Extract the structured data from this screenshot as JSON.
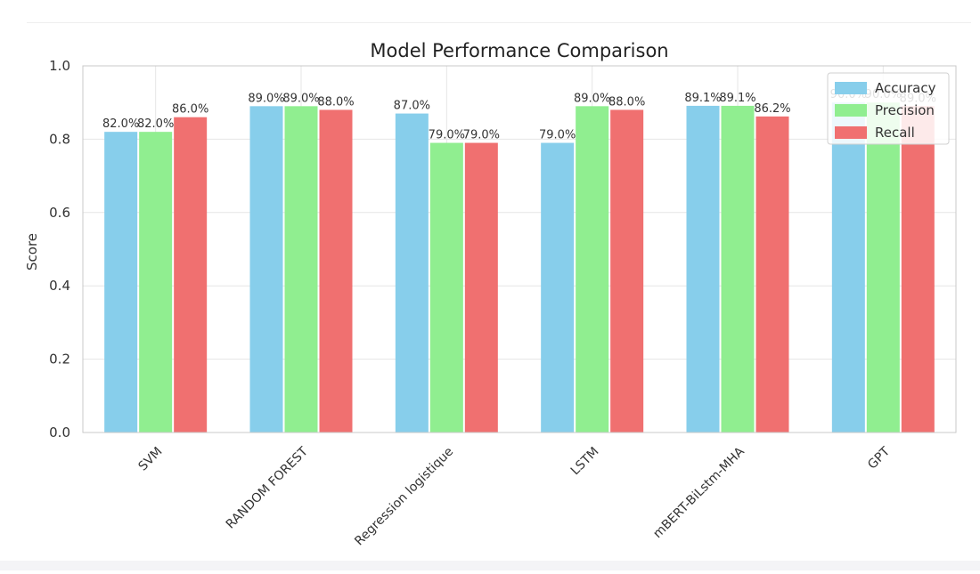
{
  "chart_data": {
    "type": "bar",
    "title": "Model Performance Comparison",
    "xlabel": "",
    "ylabel": "Score",
    "ylim": [
      0,
      1.0
    ],
    "yticks": [
      0.0,
      0.2,
      0.4,
      0.6,
      0.8,
      1.0
    ],
    "ytick_labels": [
      "0.0",
      "0.2",
      "0.4",
      "0.6",
      "0.8",
      "1.0"
    ],
    "categories": [
      "SVM",
      "RANDOM FOREST",
      "Regression logistique",
      "LSTM",
      "mBERT-BiLstm-MHA",
      "GPT"
    ],
    "grid": true,
    "legend_position": "top-right",
    "series": [
      {
        "name": "Accuracy",
        "color": "#87ceeb",
        "values": [
          0.82,
          0.89,
          0.87,
          0.79,
          0.891,
          0.9
        ],
        "labels": [
          "82.0%",
          "89.0%",
          "87.0%",
          "79.0%",
          "89.1%",
          "90.0%"
        ]
      },
      {
        "name": "Precision",
        "color": "#90ee90",
        "values": [
          0.82,
          0.89,
          0.79,
          0.89,
          0.891,
          0.9
        ],
        "labels": [
          "82.0%",
          "89.0%",
          "79.0%",
          "89.0%",
          "89.1%",
          "90.0%"
        ]
      },
      {
        "name": "Recall",
        "color": "#f07070",
        "values": [
          0.86,
          0.88,
          0.79,
          0.88,
          0.862,
          0.89
        ],
        "labels": [
          "86.0%",
          "88.0%",
          "79.0%",
          "88.0%",
          "86.2%",
          "89.0%"
        ]
      }
    ]
  }
}
